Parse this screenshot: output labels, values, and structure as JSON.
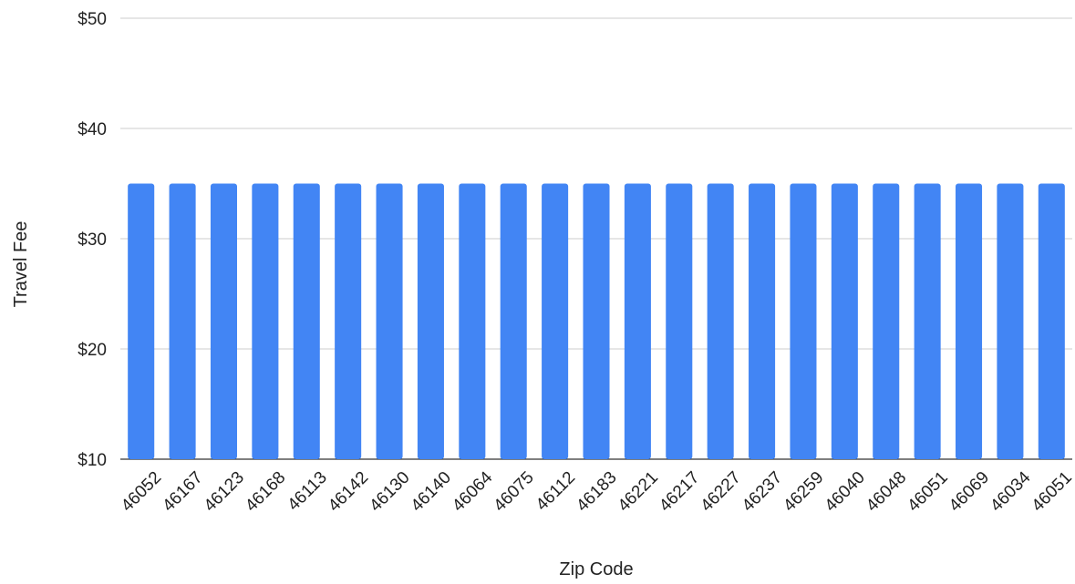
{
  "chart_data": {
    "type": "bar",
    "title": "",
    "xlabel": "Zip Code",
    "ylabel": "Travel Fee",
    "ylim": [
      10,
      50
    ],
    "y_ticks": [
      10,
      20,
      30,
      40,
      50
    ],
    "y_tick_labels": [
      "$10",
      "$20",
      "$30",
      "$40",
      "$50"
    ],
    "grid": true,
    "legend": "none",
    "bar_color": "#4285f4",
    "categories": [
      "46052",
      "46167",
      "46123",
      "46168",
      "46113",
      "46142",
      "46130",
      "46140",
      "46064",
      "46075",
      "46112",
      "46183",
      "46221",
      "46217",
      "46227",
      "46237",
      "46259",
      "46040",
      "46048",
      "46051",
      "46069",
      "46034",
      "46051"
    ],
    "values": [
      35,
      35,
      35,
      35,
      35,
      35,
      35,
      35,
      35,
      35,
      35,
      35,
      35,
      35,
      35,
      35,
      35,
      35,
      35,
      35,
      35,
      35,
      35
    ]
  }
}
